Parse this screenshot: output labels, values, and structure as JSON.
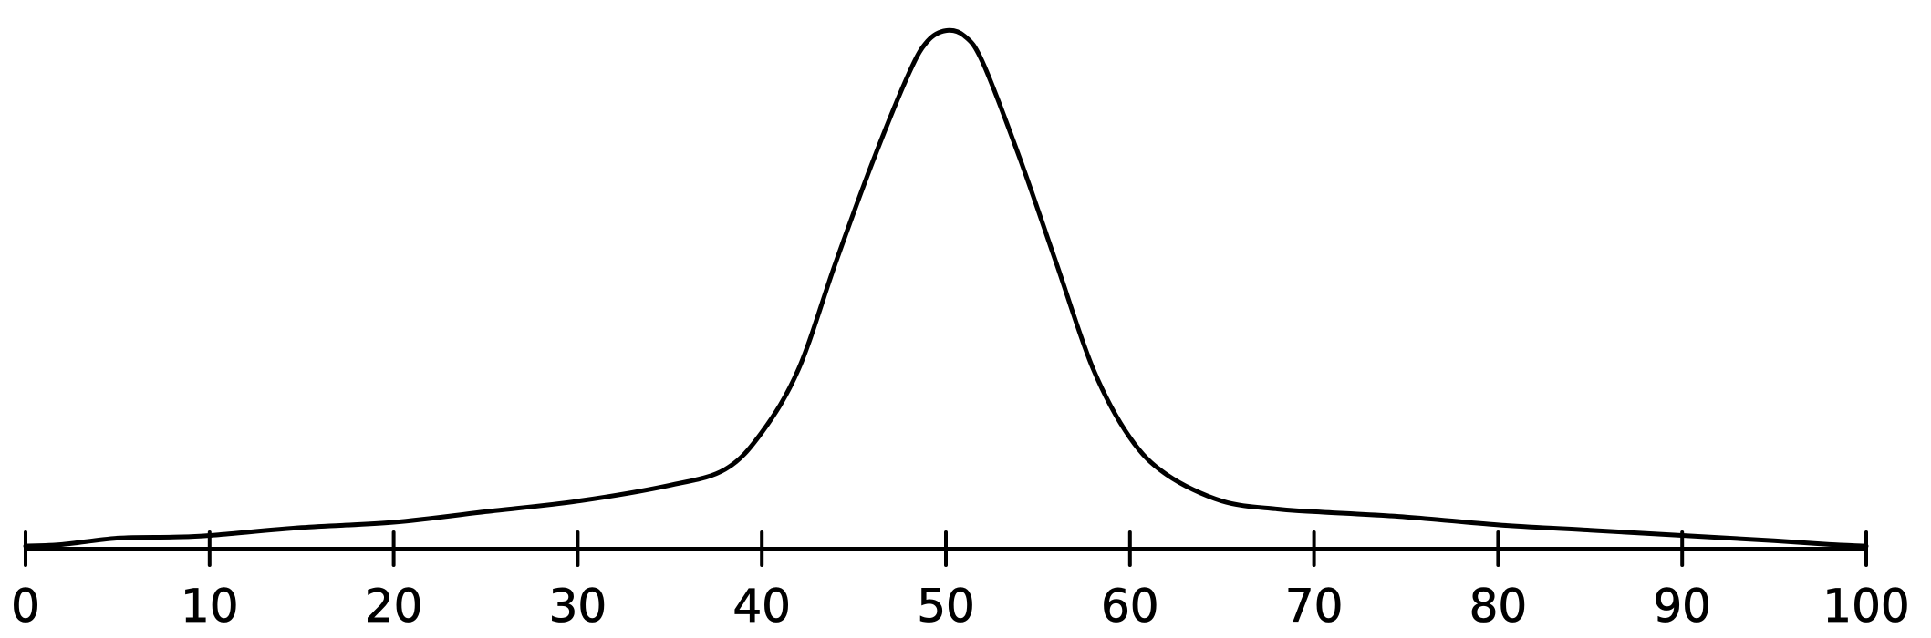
{
  "chart_data": {
    "type": "line",
    "title": "",
    "xlabel": "",
    "ylabel": "",
    "xlim": [
      0,
      100
    ],
    "ylim": [
      0,
      1
    ],
    "grid": false,
    "x_ticks": [
      0,
      10,
      20,
      30,
      40,
      50,
      60,
      70,
      80,
      90,
      100
    ],
    "x_tick_labels": [
      "0",
      "10",
      "20",
      "30",
      "40",
      "50",
      "60",
      "70",
      "80",
      "90",
      "100"
    ],
    "series": [
      {
        "x": [
          0,
          2,
          5,
          8,
          10,
          15,
          20,
          25,
          30,
          35,
          38,
          40,
          42,
          44,
          46,
          48,
          49,
          50,
          51,
          52,
          54,
          56,
          58,
          60,
          62,
          65,
          68,
          70,
          75,
          80,
          85,
          90,
          95,
          98,
          100
        ],
        "y": [
          0.005,
          0.008,
          0.02,
          0.022,
          0.025,
          0.04,
          0.05,
          0.07,
          0.09,
          0.12,
          0.15,
          0.22,
          0.34,
          0.54,
          0.73,
          0.9,
          0.96,
          0.98,
          0.97,
          0.92,
          0.74,
          0.54,
          0.34,
          0.21,
          0.14,
          0.09,
          0.075,
          0.07,
          0.06,
          0.045,
          0.035,
          0.025,
          0.015,
          0.008,
          0.005
        ]
      }
    ],
    "colors": {
      "line": "#000000",
      "background": "#ffffff"
    }
  }
}
